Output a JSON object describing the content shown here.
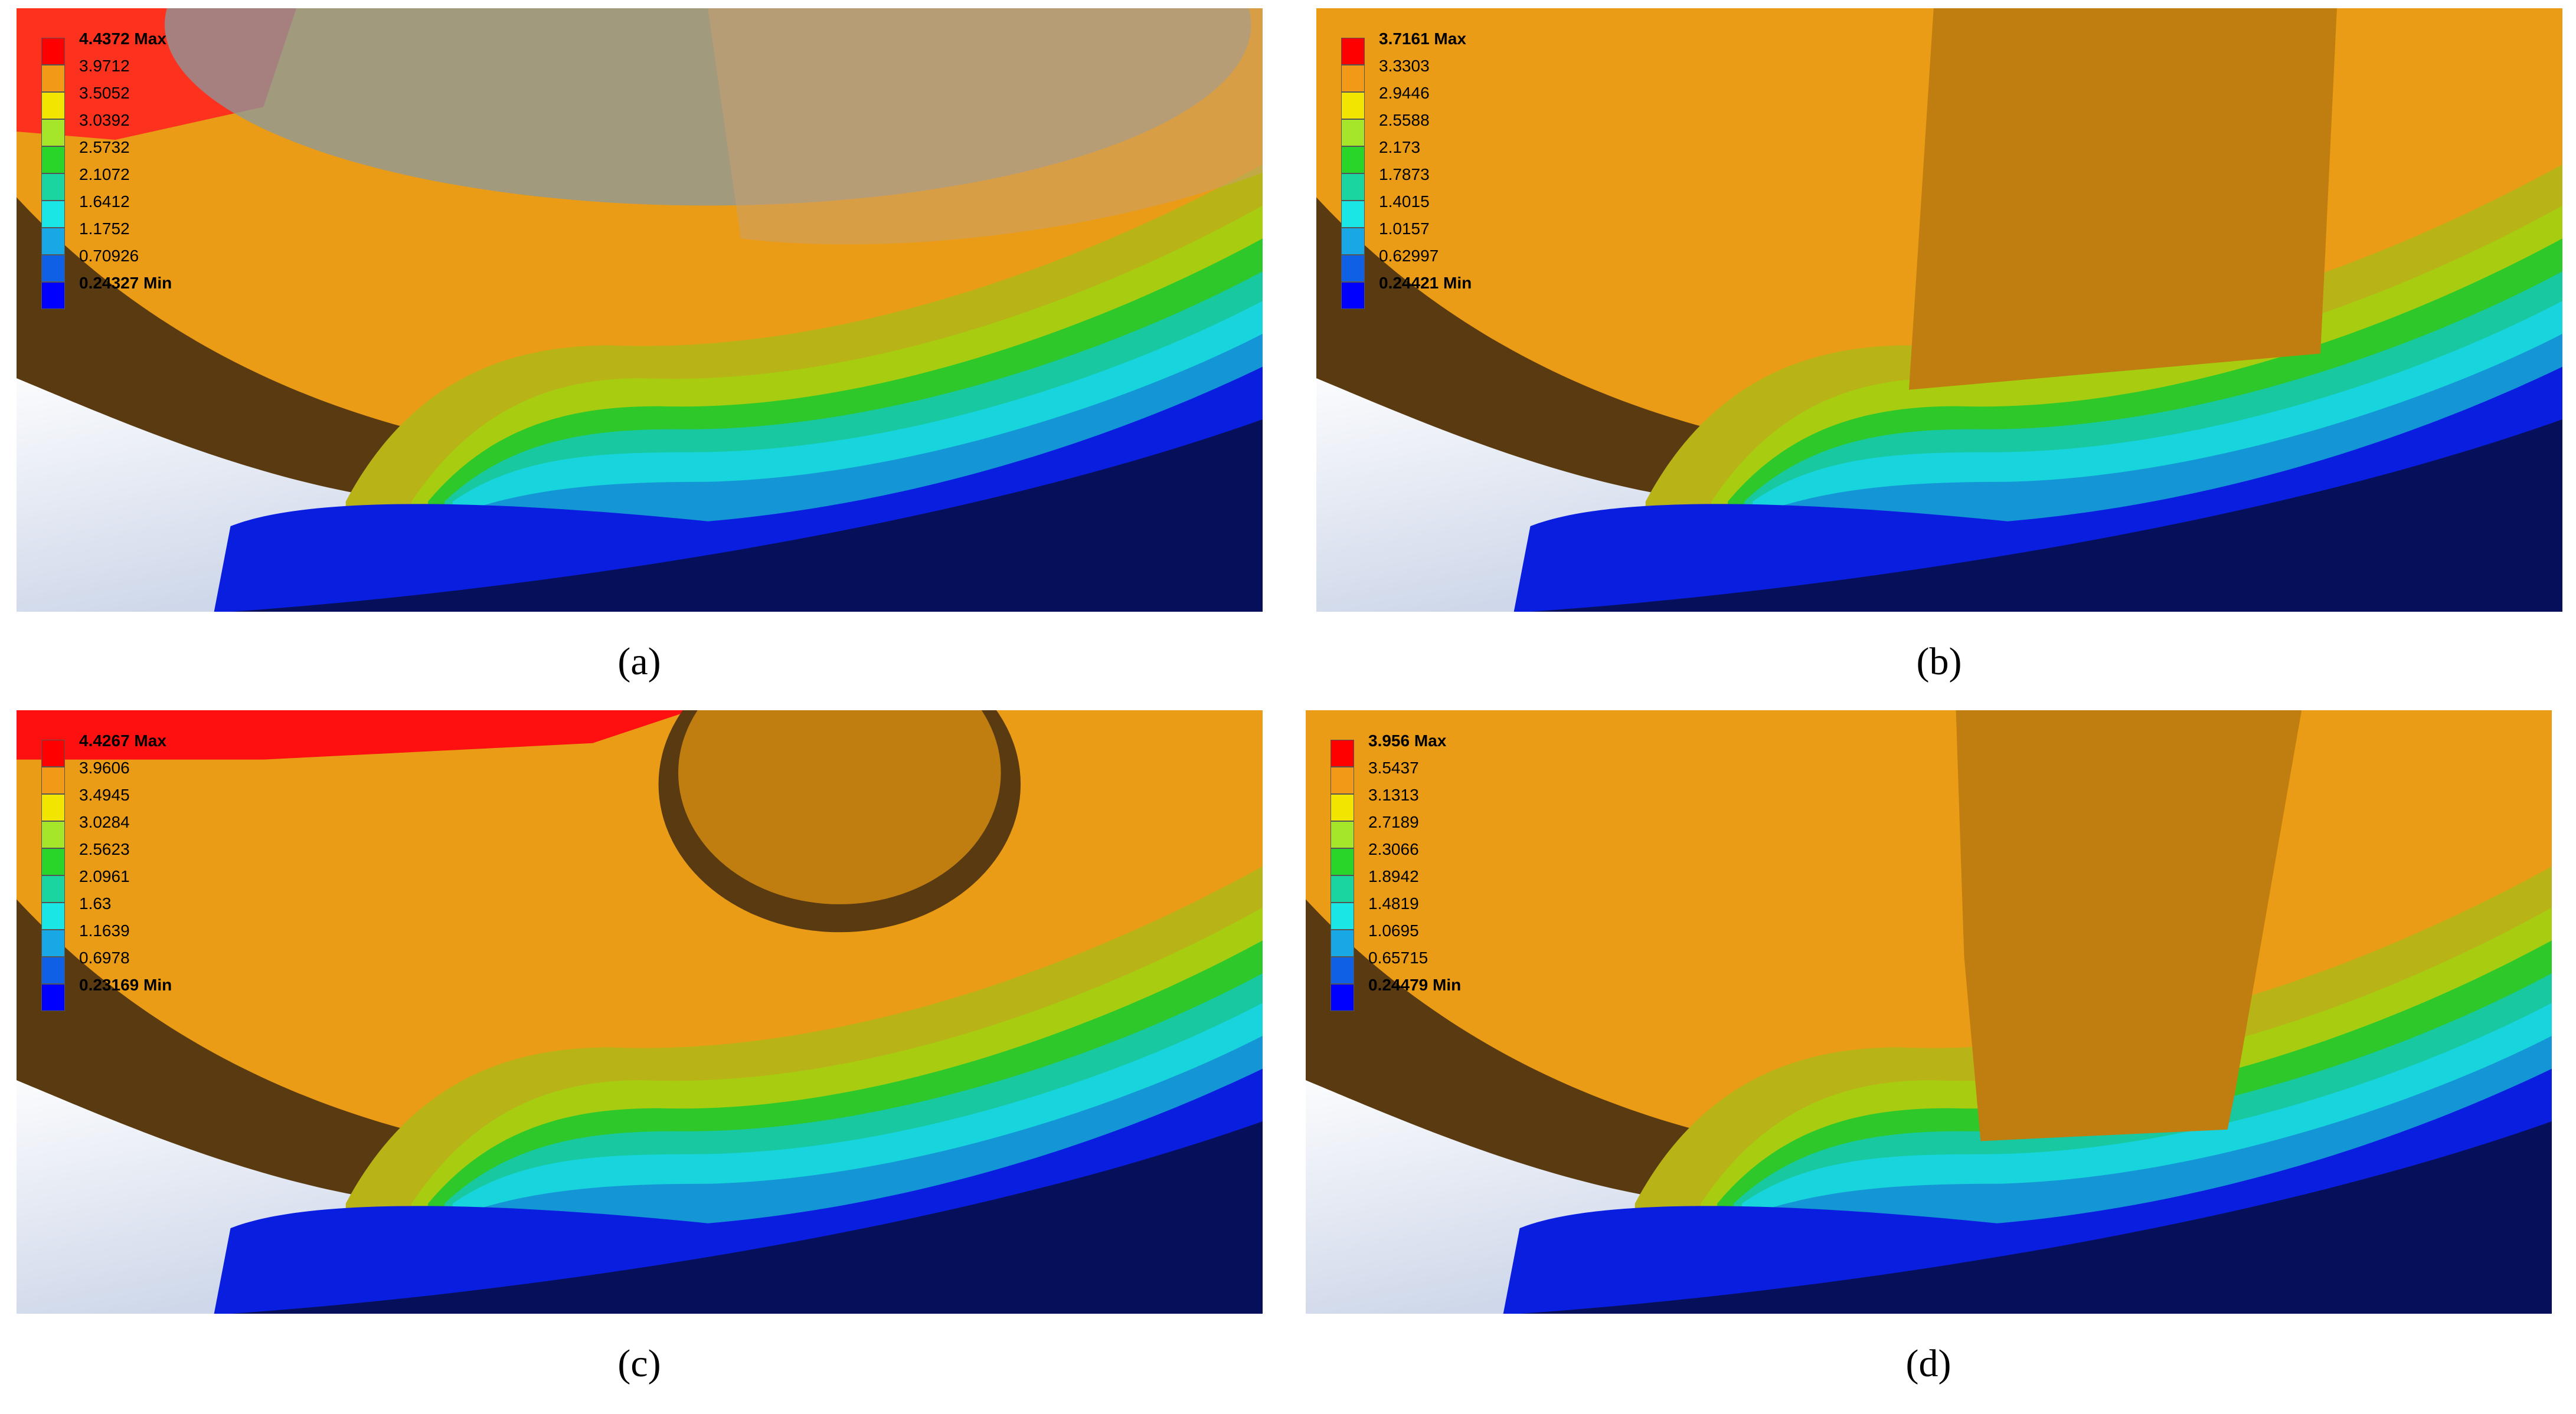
{
  "legend_colors": [
    "#ff0000",
    "#f29a17",
    "#f2e600",
    "#a6e62a",
    "#2ad52a",
    "#1ad5a0",
    "#1ae6e6",
    "#18a8e6",
    "#1060e6",
    "#0000ff"
  ],
  "panels": [
    {
      "caption": "(a)",
      "legend": [
        "4.4372 Max",
        "3.9712",
        "3.5052",
        "3.0392",
        "2.5732",
        "2.1072",
        "1.6412",
        "1.1752",
        "0.70926",
        "0.24327 Min"
      ]
    },
    {
      "caption": "(b)",
      "legend": [
        "3.7161 Max",
        "3.3303",
        "2.9446",
        "2.5588",
        "2.173",
        "1.7873",
        "1.4015",
        "1.0157",
        "0.62997",
        "0.24421 Min"
      ]
    },
    {
      "caption": "(c)",
      "legend": [
        "4.4267 Max",
        "3.9606",
        "3.4945",
        "3.0284",
        "2.5623",
        "2.0961",
        "1.63",
        "1.1639",
        "0.6978",
        "0.23169 Min"
      ]
    },
    {
      "caption": "(d)",
      "legend": [
        "3.956 Max",
        "3.5437",
        "3.1313",
        "2.7189",
        "2.3066",
        "1.8942",
        "1.4819",
        "1.0695",
        "0.65715",
        "0.24479 Min"
      ]
    }
  ]
}
